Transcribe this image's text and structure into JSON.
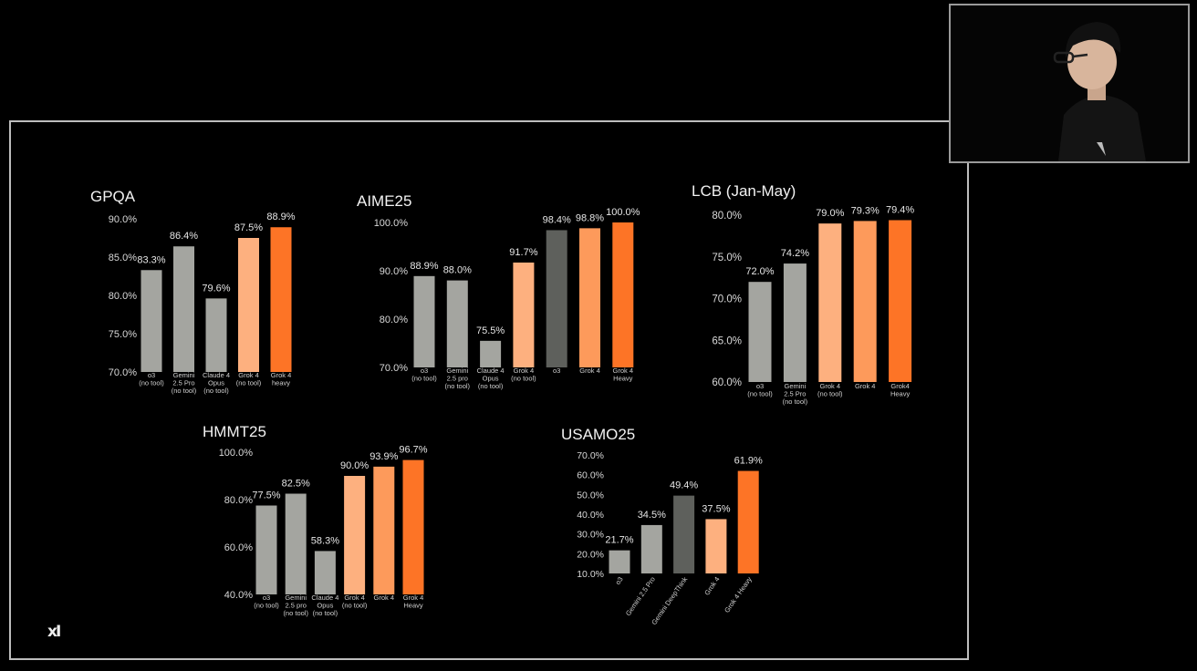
{
  "colors": {
    "light_gray": "#a4a5a0",
    "dark_gray": "#5e605c",
    "light_orange": "#fdb07f",
    "mid_orange": "#fd9a5b",
    "orange": "#fd7426"
  },
  "logo_text": "xI",
  "chart_data": [
    {
      "type": "bar",
      "title": "GPQA",
      "categories": [
        [
          "o3",
          "(no tool)"
        ],
        [
          "Gemini",
          "2.5 Pro",
          "(no tool)"
        ],
        [
          "Claude 4",
          "Opus",
          "(no tool)"
        ],
        [
          "Grok 4",
          "(no tool)"
        ],
        [
          "Grok 4",
          "heavy"
        ]
      ],
      "values": [
        83.3,
        86.4,
        79.6,
        87.5,
        88.9
      ],
      "value_labels": [
        "83.3%",
        "86.4%",
        "79.6%",
        "87.5%",
        "88.9%"
      ],
      "bar_colors": [
        "light_gray",
        "light_gray",
        "light_gray",
        "light_orange",
        "orange"
      ],
      "yticks": [
        "70.0%",
        "75.0%",
        "80.0%",
        "85.0%",
        "90.0%"
      ],
      "ylim": [
        70,
        90
      ]
    },
    {
      "type": "bar",
      "title": "AIME25",
      "categories": [
        [
          "o3",
          "(no tool)"
        ],
        [
          "Gemini",
          "2.5 pro",
          "(no tool)"
        ],
        [
          "Claude 4",
          "Opus",
          "(no tool)"
        ],
        [
          "Grok 4",
          "(no tool)"
        ],
        [
          "o3"
        ],
        [
          "Grok 4"
        ],
        [
          "Grok 4",
          "Heavy"
        ]
      ],
      "values": [
        88.9,
        88.0,
        75.5,
        91.7,
        98.4,
        98.8,
        100.0
      ],
      "value_labels": [
        "88.9%",
        "88.0%",
        "75.5%",
        "91.7%",
        "98.4%",
        "98.8%",
        "100.0%"
      ],
      "bar_colors": [
        "light_gray",
        "light_gray",
        "light_gray",
        "light_orange",
        "dark_gray",
        "mid_orange",
        "orange"
      ],
      "yticks": [
        "70.0%",
        "80.0%",
        "90.0%",
        "100.0%"
      ],
      "ylim": [
        70,
        100
      ]
    },
    {
      "type": "bar",
      "title": "LCB (Jan-May)",
      "categories": [
        [
          "o3",
          "(no tool)"
        ],
        [
          "Gemini",
          "2.5 Pro",
          "(no tool)"
        ],
        [
          "Grok 4",
          "(no tool)"
        ],
        [
          "Grok 4"
        ],
        [
          "Grok4",
          "Heavy"
        ]
      ],
      "values": [
        72.0,
        74.2,
        79.0,
        79.3,
        79.4
      ],
      "value_labels": [
        "72.0%",
        "74.2%",
        "79.0%",
        "79.3%",
        "79.4%"
      ],
      "bar_colors": [
        "light_gray",
        "light_gray",
        "light_orange",
        "mid_orange",
        "orange"
      ],
      "yticks": [
        "60.0%",
        "65.0%",
        "70.0%",
        "75.0%",
        "80.0%"
      ],
      "ylim": [
        60,
        80
      ]
    },
    {
      "type": "bar",
      "title": "HMMT25",
      "categories": [
        [
          "o3",
          "(no tool)"
        ],
        [
          "Gemini",
          "2.5 pro",
          "(no tool)"
        ],
        [
          "Claude 4",
          "Opus",
          "(no tool)"
        ],
        [
          "Grok 4",
          "(no tool)"
        ],
        [
          "Grok 4"
        ],
        [
          "Grok 4",
          "Heavy"
        ]
      ],
      "values": [
        77.5,
        82.5,
        58.3,
        90.0,
        93.9,
        96.7
      ],
      "value_labels": [
        "77.5%",
        "82.5%",
        "58.3%",
        "90.0%",
        "93.9%",
        "96.7%"
      ],
      "bar_colors": [
        "light_gray",
        "light_gray",
        "light_gray",
        "light_orange",
        "mid_orange",
        "orange"
      ],
      "yticks": [
        "40.0%",
        "60.0%",
        "80.0%",
        "100.0%"
      ],
      "ylim": [
        40,
        100
      ]
    },
    {
      "type": "bar",
      "title": "USAMO25",
      "categories": [
        [
          "o3"
        ],
        [
          "Gemini 2.5 Pro"
        ],
        [
          "Gemini DeepThink"
        ],
        [
          "Grok 4"
        ],
        [
          "Grok 4 Heavy"
        ]
      ],
      "values": [
        21.7,
        34.5,
        49.4,
        37.5,
        61.9
      ],
      "value_labels": [
        "21.7%",
        "34.5%",
        "49.4%",
        "37.5%",
        "61.9%"
      ],
      "bar_colors": [
        "light_gray",
        "light_gray",
        "dark_gray",
        "light_orange",
        "orange"
      ],
      "yticks": [
        "10.0%",
        "20.0%",
        "30.0%",
        "40.0%",
        "50.0%",
        "60.0%",
        "70.0%"
      ],
      "ylim": [
        10,
        70
      ],
      "rotated_labels": true
    }
  ]
}
